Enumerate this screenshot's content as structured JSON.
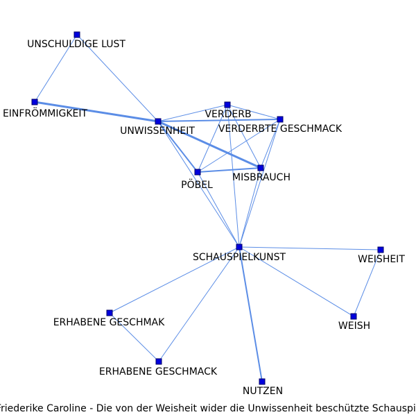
{
  "caption": "Friederike Caroline - Die von der Weisheit wider die Unwissenheit beschützte Schauspielkunst",
  "colors": {
    "edge": "#5b8de6",
    "node_fill": "#0000dd",
    "node_stroke": "#000066",
    "label": "#000000"
  },
  "nodes": [
    {
      "id": "unschuldige_lust",
      "label": "UNSCHULDIGE LUST"
    },
    {
      "id": "einfroemmigkeit",
      "label": "EINFRÖMMIGKEIT"
    },
    {
      "id": "unwissenheit",
      "label": "UNWISSENHEIT"
    },
    {
      "id": "verderb",
      "label": "VERDERB"
    },
    {
      "id": "verderbte_geschmack",
      "label": "VERDERBTE GESCHMACK"
    },
    {
      "id": "poebel",
      "label": "PÖBEL"
    },
    {
      "id": "misbrauch",
      "label": "MISBRAUCH"
    },
    {
      "id": "schauspielkunst",
      "label": "SCHAUSPIELKUNST"
    },
    {
      "id": "weisheit",
      "label": "WEISHEIT"
    },
    {
      "id": "weish",
      "label": "WEISH"
    },
    {
      "id": "erhabene_geschmak",
      "label": "ERHABENE GESCHMAK"
    },
    {
      "id": "erhabene_geschmack",
      "label": "ERHABENE GESCHMACK"
    },
    {
      "id": "nutzen",
      "label": "NUTZEN"
    }
  ],
  "edges": [
    {
      "source": "unschuldige_lust",
      "target": "einfroemmigkeit",
      "weight": 1
    },
    {
      "source": "unschuldige_lust",
      "target": "unwissenheit",
      "weight": 1
    },
    {
      "source": "einfroemmigkeit",
      "target": "unwissenheit",
      "weight": 3
    },
    {
      "source": "unwissenheit",
      "target": "verderb",
      "weight": 1
    },
    {
      "source": "unwissenheit",
      "target": "verderbte_geschmack",
      "weight": 2
    },
    {
      "source": "unwissenheit",
      "target": "poebel",
      "weight": 2
    },
    {
      "source": "unwissenheit",
      "target": "misbrauch",
      "weight": 3
    },
    {
      "source": "unwissenheit",
      "target": "schauspielkunst",
      "weight": 1
    },
    {
      "source": "verderb",
      "target": "verderbte_geschmack",
      "weight": 1
    },
    {
      "source": "verderb",
      "target": "poebel",
      "weight": 1
    },
    {
      "source": "verderb",
      "target": "misbrauch",
      "weight": 1
    },
    {
      "source": "verderb",
      "target": "schauspielkunst",
      "weight": 1
    },
    {
      "source": "verderbte_geschmack",
      "target": "poebel",
      "weight": 1
    },
    {
      "source": "verderbte_geschmack",
      "target": "misbrauch",
      "weight": 1
    },
    {
      "source": "verderbte_geschmack",
      "target": "schauspielkunst",
      "weight": 1
    },
    {
      "source": "poebel",
      "target": "misbrauch",
      "weight": 2
    },
    {
      "source": "poebel",
      "target": "schauspielkunst",
      "weight": 1
    },
    {
      "source": "misbrauch",
      "target": "schauspielkunst",
      "weight": 1
    },
    {
      "source": "schauspielkunst",
      "target": "weisheit",
      "weight": 1
    },
    {
      "source": "schauspielkunst",
      "target": "weish",
      "weight": 1
    },
    {
      "source": "schauspielkunst",
      "target": "erhabene_geschmak",
      "weight": 1
    },
    {
      "source": "schauspielkunst",
      "target": "erhabene_geschmack",
      "weight": 1
    },
    {
      "source": "schauspielkunst",
      "target": "nutzen",
      "weight": 2
    },
    {
      "source": "weisheit",
      "target": "weish",
      "weight": 1
    },
    {
      "source": "erhabene_geschmak",
      "target": "erhabene_geschmack",
      "weight": 1
    }
  ]
}
